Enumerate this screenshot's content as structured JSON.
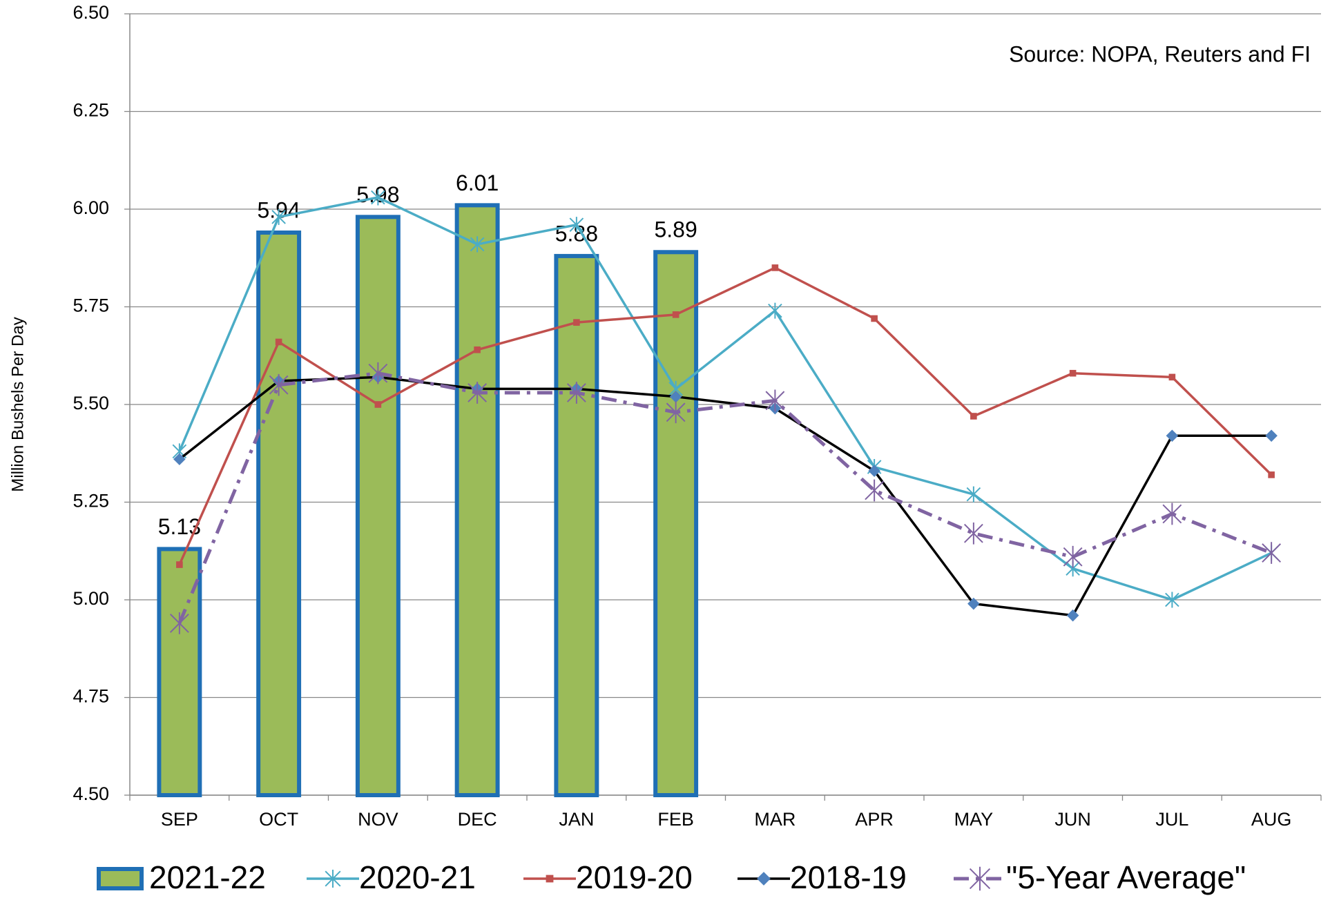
{
  "chart_data": {
    "type": "bar",
    "y_axis_label": "Million Bushels Per Day",
    "annotation": "Source: NOPA, Reuters and FI",
    "categories": [
      "SEP",
      "OCT",
      "NOV",
      "DEC",
      "JAN",
      "FEB",
      "MAR",
      "APR",
      "MAY",
      "JUN",
      "JUL",
      "AUG"
    ],
    "series": [
      {
        "name": "2021-22",
        "type": "bar",
        "color": "#9bbb59",
        "edge_color": "#1f6fb5",
        "values": [
          5.13,
          5.94,
          5.98,
          6.01,
          5.88,
          5.89,
          null,
          null,
          null,
          null,
          null,
          null
        ]
      },
      {
        "name": "2020-21",
        "type": "line",
        "marker": "asterisk",
        "color": "#4bacc6",
        "values": [
          5.38,
          5.98,
          6.03,
          5.91,
          5.96,
          5.54,
          5.74,
          5.34,
          5.27,
          5.08,
          5.0,
          5.12
        ]
      },
      {
        "name": "2019-20",
        "type": "line",
        "marker": "square",
        "color": "#c0504d",
        "values": [
          5.09,
          5.66,
          5.5,
          5.64,
          5.71,
          5.73,
          5.85,
          5.72,
          5.47,
          5.58,
          5.57,
          5.32
        ]
      },
      {
        "name": "2018-19",
        "type": "line",
        "marker": "diamond",
        "color": "#000000",
        "marker_color": "#4f81bd",
        "values": [
          5.36,
          5.56,
          5.57,
          5.54,
          5.54,
          5.52,
          5.49,
          5.33,
          4.99,
          4.96,
          5.42,
          5.42
        ]
      },
      {
        "name": "\"5-Year Average\"",
        "type": "line",
        "marker": "asterisk",
        "dashed": true,
        "color": "#8064a2",
        "values": [
          4.94,
          5.55,
          5.58,
          5.53,
          5.53,
          5.48,
          5.51,
          5.28,
          5.17,
          5.11,
          5.22,
          5.12
        ]
      }
    ],
    "ylim": [
      4.5,
      6.5
    ],
    "yticks": [
      {
        "value": 4.5,
        "label": "4.50"
      },
      4.75,
      {
        "value": 5,
        "label": "5.00"
      },
      5.25,
      {
        "value": 5.5,
        "label": "5.50"
      },
      5.75,
      {
        "value": 6,
        "label": "6.00"
      },
      6.25,
      {
        "value": 6.5,
        "label": "6.50"
      }
    ],
    "grid": true,
    "legend": "bottom"
  }
}
